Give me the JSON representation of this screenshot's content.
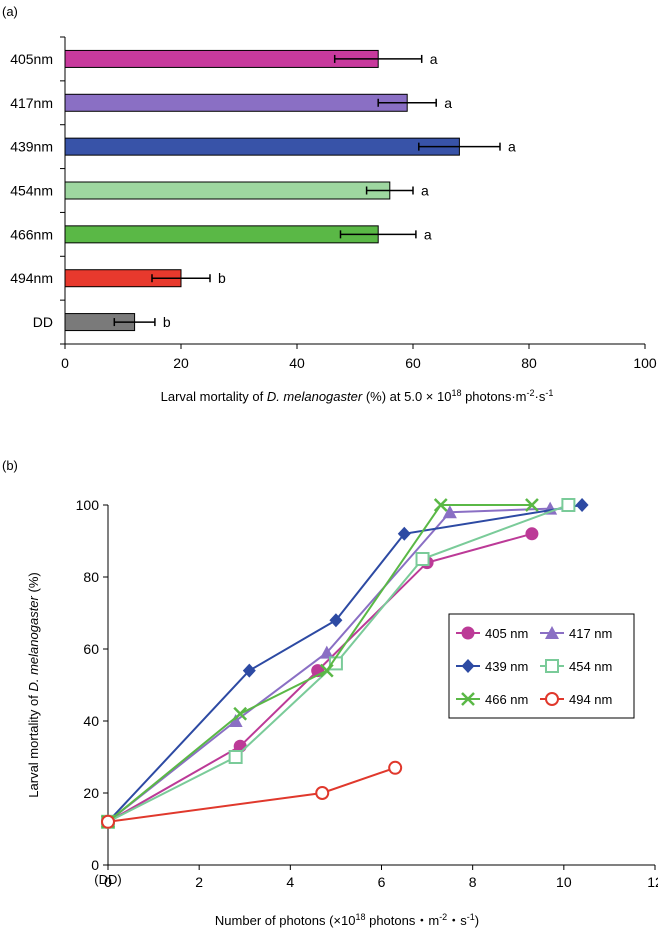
{
  "chart_data": [
    {
      "type": "bar",
      "orientation": "horizontal",
      "panel_label": "(a)",
      "categories": [
        "405nm",
        "417nm",
        "439nm",
        "454nm",
        "466nm",
        "494nm",
        "DD"
      ],
      "values": [
        54,
        59,
        68,
        56,
        54,
        20,
        12
      ],
      "errors": [
        7.5,
        5,
        7,
        4,
        6.5,
        5,
        3.5
      ],
      "significance": [
        "a",
        "a",
        "a",
        "a",
        "a",
        "b",
        "b"
      ],
      "colors": [
        "#c83a9d",
        "#8a6fc4",
        "#3853a8",
        "#9ed7a0",
        "#5ab846",
        "#e8392d",
        "#7a7a7a"
      ],
      "xlim": [
        0,
        100
      ],
      "xticks": [
        0,
        20,
        40,
        60,
        80,
        100
      ],
      "xlabel": {
        "prefix": "Larval mortality of ",
        "species": "D. melanogaster",
        "middle": " (%) at 5.0 × 10",
        "exp": "18",
        "suffix": " photons·m",
        "exp2": "-2",
        "suffix2": "·s",
        "exp3": "-1"
      },
      "grid": false
    },
    {
      "type": "line",
      "panel_label": "(b)",
      "xlim": [
        0,
        12
      ],
      "ylim": [
        0,
        100
      ],
      "xticks": [
        0,
        2,
        4,
        6,
        8,
        10,
        12
      ],
      "yticks": [
        0,
        20,
        40,
        60,
        80,
        100
      ],
      "xtick_extra": "(DD)",
      "xlabel": {
        "prefix": "Number of photons (×10",
        "exp": "18",
        "middle": " photons・m",
        "exp2": "-2",
        "middle2": "・s",
        "exp3": "-1",
        "suffix": ")"
      },
      "ylabel": {
        "prefix": "Larval mortality of ",
        "species": "D. melanogaster",
        "suffix": " (%)"
      },
      "legend_position": "right",
      "grid": false,
      "series": [
        {
          "name": "405 nm",
          "color": "#bc3a97",
          "marker": "circle-filled",
          "x": [
            0,
            2.9,
            4.6,
            7.0,
            9.3
          ],
          "y": [
            12,
            33,
            54,
            84,
            92
          ]
        },
        {
          "name": "417 nm",
          "color": "#8a6fc4",
          "marker": "triangle-filled",
          "x": [
            0,
            2.8,
            4.8,
            7.5,
            9.7
          ],
          "y": [
            12,
            40,
            59,
            98,
            99
          ]
        },
        {
          "name": "439 nm",
          "color": "#2d4aa3",
          "marker": "diamond-filled",
          "x": [
            0,
            3.1,
            5.0,
            6.5,
            10.4
          ],
          "y": [
            12,
            54,
            68,
            92,
            100
          ]
        },
        {
          "name": "454 nm",
          "color": "#7acb99",
          "marker": "square-open",
          "x": [
            0,
            2.8,
            5.0,
            6.9,
            10.1
          ],
          "y": [
            12,
            30,
            56,
            85,
            100
          ]
        },
        {
          "name": "466 nm",
          "color": "#5ab846",
          "marker": "x",
          "x": [
            0,
            2.9,
            4.8,
            7.3,
            9.3
          ],
          "y": [
            12,
            42,
            54,
            100,
            100
          ]
        },
        {
          "name": "494 nm",
          "color": "#e0382c",
          "marker": "circle-open",
          "x": [
            0,
            4.7,
            6.3
          ],
          "y": [
            12,
            20,
            27
          ]
        }
      ]
    }
  ]
}
